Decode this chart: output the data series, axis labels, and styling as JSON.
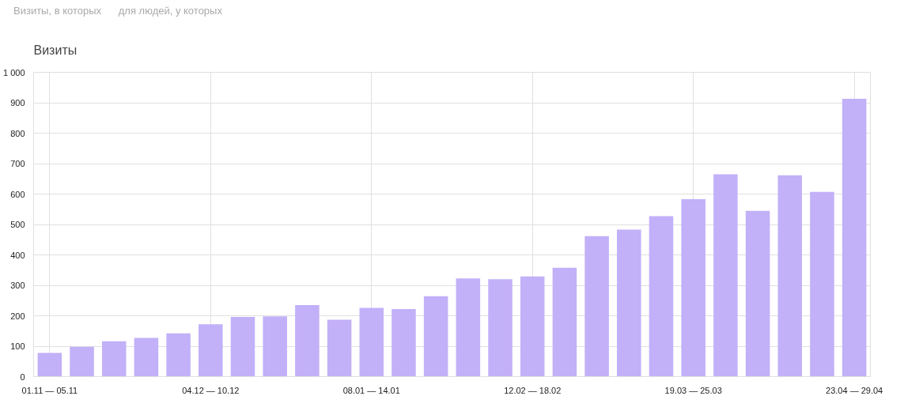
{
  "chart_data": {
    "type": "bar",
    "title": "Визиты",
    "annotations": [
      "Визиты, в которых",
      "для людей, у которых"
    ],
    "categories": [
      "01.11 — 05.11",
      null,
      null,
      null,
      null,
      "04.12 — 10.12",
      null,
      null,
      null,
      null,
      "08.01 — 14.01",
      null,
      null,
      null,
      null,
      "12.02 — 18.02",
      null,
      null,
      null,
      null,
      "19.03 — 25.03",
      null,
      null,
      null,
      null,
      "23.04 — 29.04"
    ],
    "values": [
      78,
      98,
      116,
      127,
      142,
      172,
      196,
      198,
      235,
      187,
      226,
      222,
      264,
      323,
      320,
      329,
      358,
      462,
      483,
      527,
      583,
      665,
      545,
      662,
      607,
      913
    ],
    "color": "#c2b0f8",
    "ylim": [
      0,
      1000
    ],
    "yticks": [
      0,
      100,
      200,
      300,
      400,
      500,
      600,
      700,
      800,
      900,
      {
        "value": 1000,
        "label": "1 000"
      }
    ],
    "grid": true
  }
}
